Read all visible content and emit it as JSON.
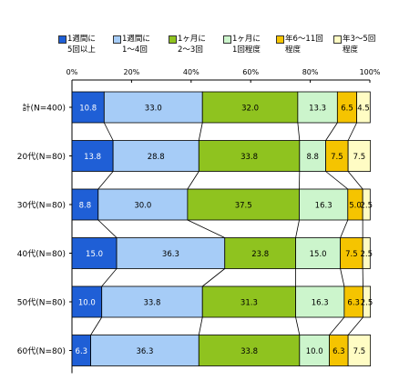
{
  "chart_data": {
    "type": "bar",
    "orientation": "horizontal",
    "stacked": true,
    "percent": true,
    "title": "",
    "xlabel": "",
    "ylabel": "",
    "xlim": [
      0,
      100
    ],
    "x_ticks": [
      "0%",
      "20%",
      "40%",
      "60%",
      "80%",
      "100%"
    ],
    "grid": false,
    "legend_position": "top",
    "connector_lines": true,
    "categories": [
      "計(N=400)",
      "20代(N=80)",
      "30代(N=80)",
      "40代(N=80)",
      "50代(N=80)",
      "60代(N=80)"
    ],
    "series": [
      {
        "name": "1週間に5回以上",
        "legend_lines": [
          "1週間に",
          "5回以上"
        ],
        "color": "#1f5fd6",
        "label_color": "#ffffff",
        "values": [
          10.8,
          13.8,
          8.8,
          15.0,
          10.0,
          6.3
        ],
        "labels": [
          "10.8",
          "13.8",
          "8.8",
          "15.0",
          "10.0",
          "6.3"
        ]
      },
      {
        "name": "1週間に1～4回",
        "legend_lines": [
          "1週間に",
          "1～4回"
        ],
        "color": "#a6ccf7",
        "label_color": "#000000",
        "values": [
          33.0,
          28.8,
          30.0,
          36.3,
          33.8,
          36.3
        ],
        "labels": [
          "33.0",
          "28.8",
          "30.0",
          "36.3",
          "33.8",
          "36.3"
        ]
      },
      {
        "name": "1ヶ月に2～3回",
        "legend_lines": [
          "1ヶ月に",
          "2～3回"
        ],
        "color": "#8fc31f",
        "label_color": "#000000",
        "values": [
          32.0,
          33.8,
          37.5,
          23.8,
          31.3,
          33.8
        ],
        "labels": [
          "32.0",
          "33.8",
          "37.5",
          "23.8",
          "31.3",
          "33.8"
        ]
      },
      {
        "name": "1ヶ月に1回程度",
        "legend_lines": [
          "1ヶ月に",
          "1回程度"
        ],
        "color": "#ccf5cc",
        "label_color": "#000000",
        "values": [
          13.3,
          8.8,
          16.3,
          15.0,
          16.3,
          10.0
        ],
        "labels": [
          "13.3",
          "8.8",
          "16.3",
          "15.0",
          "16.3",
          "10.0"
        ]
      },
      {
        "name": "年6～11回程度",
        "legend_lines": [
          "年6～11回",
          "程度"
        ],
        "color": "#f5c400",
        "label_color": "#000000",
        "values": [
          6.5,
          7.5,
          5.0,
          7.5,
          6.3,
          6.3
        ],
        "labels": [
          "6.5",
          "7.5",
          "5.0",
          "7.5",
          "6.3",
          "6.3"
        ]
      },
      {
        "name": "年3～5回程度",
        "legend_lines": [
          "年3～5回",
          "程度"
        ],
        "color": "#fffcc4",
        "label_color": "#000000",
        "values": [
          4.5,
          7.5,
          2.5,
          2.5,
          2.5,
          7.5
        ],
        "labels": [
          "4.5",
          "7.5",
          "2.5",
          "2.5",
          "2.5",
          "7.5"
        ]
      }
    ]
  }
}
